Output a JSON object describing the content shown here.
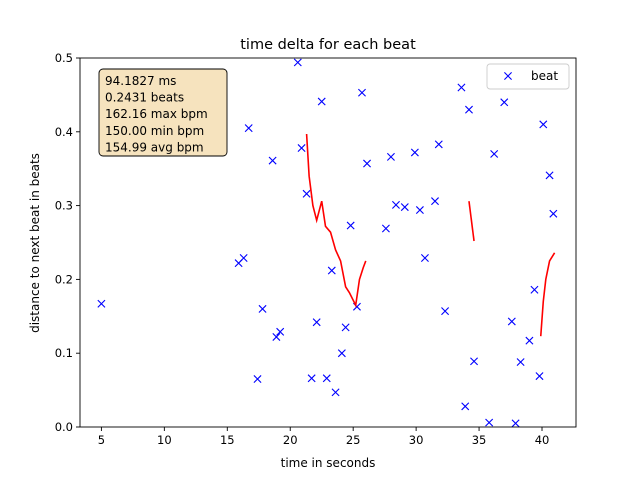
{
  "chart_data": {
    "type": "scatter",
    "title": "time delta for each beat",
    "xlabel": "time in seconds",
    "ylabel": "distance to next beat in beats",
    "xlim": [
      3.3,
      42.7
    ],
    "ylim": [
      0,
      0.5
    ],
    "xticks": [
      5,
      10,
      15,
      20,
      25,
      30,
      35,
      40
    ],
    "xtick_labels": [
      "5",
      "10",
      "15",
      "20",
      "25",
      "30",
      "35",
      "40"
    ],
    "yticks": [
      0.0,
      0.1,
      0.2,
      0.3,
      0.4,
      0.5
    ],
    "ytick_labels": [
      "0.0",
      "0.1",
      "0.2",
      "0.3",
      "0.4",
      "0.5"
    ],
    "grid": false,
    "legend": {
      "entries": [
        "beat"
      ],
      "placement": "top-right"
    },
    "stats_box": {
      "lines": [
        "94.1827 ms",
        "0.2431 beats",
        "162.16 max bpm",
        "150.00 min bpm",
        "154.99 avg bpm"
      ],
      "placement": "top-left"
    },
    "series": [
      {
        "name": "beat",
        "kind": "scatter",
        "marker": "x",
        "color": "#0000ff",
        "points": [
          [
            5.0,
            0.167
          ],
          [
            15.9,
            0.222
          ],
          [
            16.3,
            0.229
          ],
          [
            16.7,
            0.405
          ],
          [
            17.4,
            0.065
          ],
          [
            17.8,
            0.16
          ],
          [
            18.6,
            0.361
          ],
          [
            18.9,
            0.122
          ],
          [
            19.2,
            0.129
          ],
          [
            20.6,
            0.494
          ],
          [
            20.9,
            0.378
          ],
          [
            21.3,
            0.316
          ],
          [
            21.7,
            0.066
          ],
          [
            22.1,
            0.142
          ],
          [
            22.5,
            0.441
          ],
          [
            22.9,
            0.066
          ],
          [
            23.3,
            0.212
          ],
          [
            23.6,
            0.047
          ],
          [
            24.1,
            0.1
          ],
          [
            24.4,
            0.135
          ],
          [
            24.8,
            0.273
          ],
          [
            25.3,
            0.163
          ],
          [
            25.7,
            0.453
          ],
          [
            26.1,
            0.357
          ],
          [
            27.6,
            0.269
          ],
          [
            28.0,
            0.366
          ],
          [
            28.4,
            0.301
          ],
          [
            29.1,
            0.298
          ],
          [
            29.9,
            0.372
          ],
          [
            30.3,
            0.294
          ],
          [
            30.7,
            0.229
          ],
          [
            31.5,
            0.306
          ],
          [
            31.8,
            0.383
          ],
          [
            32.3,
            0.157
          ],
          [
            33.6,
            0.46
          ],
          [
            33.9,
            0.028
          ],
          [
            34.2,
            0.43
          ],
          [
            34.6,
            0.089
          ],
          [
            35.8,
            0.006
          ],
          [
            36.2,
            0.37
          ],
          [
            37.0,
            0.44
          ],
          [
            37.6,
            0.143
          ],
          [
            37.9,
            0.005
          ],
          [
            38.3,
            0.088
          ],
          [
            39.0,
            0.117
          ],
          [
            39.4,
            0.186
          ],
          [
            39.8,
            0.069
          ],
          [
            40.1,
            0.41
          ],
          [
            40.6,
            0.341
          ],
          [
            40.9,
            0.289
          ]
        ]
      },
      {
        "kind": "line",
        "color": "#ff0000",
        "segments": [
          [
            [
              21.3,
              0.397
            ],
            [
              21.5,
              0.34
            ],
            [
              21.8,
              0.3
            ],
            [
              22.1,
              0.28
            ],
            [
              22.5,
              0.306
            ],
            [
              22.8,
              0.272
            ],
            [
              23.2,
              0.264
            ],
            [
              23.6,
              0.24
            ],
            [
              24.0,
              0.225
            ],
            [
              24.4,
              0.19
            ],
            [
              24.7,
              0.182
            ],
            [
              25.2,
              0.165
            ],
            [
              25.5,
              0.2
            ],
            [
              25.8,
              0.216
            ],
            [
              26.0,
              0.225
            ]
          ],
          [
            [
              34.2,
              0.306
            ],
            [
              34.6,
              0.252
            ]
          ],
          [
            [
              39.9,
              0.123
            ],
            [
              40.1,
              0.17
            ],
            [
              40.3,
              0.2
            ],
            [
              40.6,
              0.225
            ],
            [
              41.0,
              0.236
            ]
          ]
        ]
      }
    ]
  }
}
